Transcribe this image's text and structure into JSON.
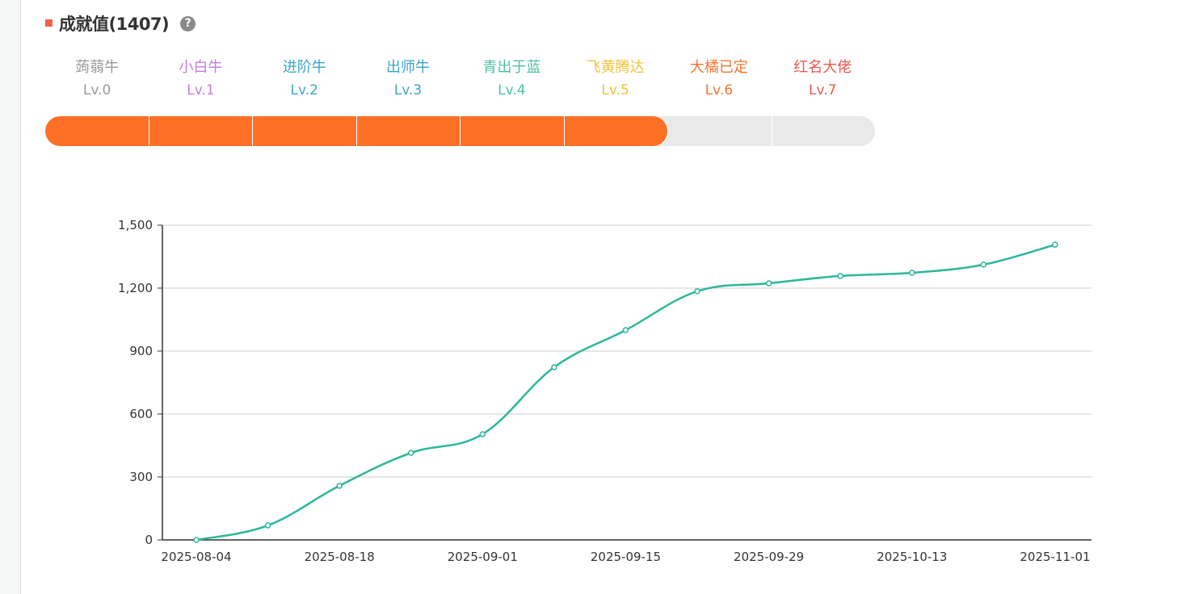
{
  "header": {
    "title": "成就值(1407)",
    "help_icon": "question-circle-icon",
    "marker_color": "#f4604a"
  },
  "levels": [
    {
      "name": "蒟蒻牛",
      "level": "Lv.0",
      "color": "#999999"
    },
    {
      "name": "小白牛",
      "level": "Lv.1",
      "color": "#c27ee0"
    },
    {
      "name": "进阶牛",
      "level": "Lv.2",
      "color": "#3ba5c9"
    },
    {
      "name": "出师牛",
      "level": "Lv.3",
      "color": "#3ba5c9"
    },
    {
      "name": "青出于蓝",
      "level": "Lv.4",
      "color": "#4cc1a8"
    },
    {
      "name": "飞黄腾达",
      "level": "Lv.5",
      "color": "#ecc43a"
    },
    {
      "name": "大橘已定",
      "level": "Lv.6",
      "color": "#f5742f"
    },
    {
      "name": "红名大佬",
      "level": "Lv.7",
      "color": "#ed5750"
    }
  ],
  "progress": {
    "segments_total": 8,
    "segments_filled": 6,
    "fill_color": "#fe7026",
    "empty_color": "#e9e9e9"
  },
  "chart_data": {
    "type": "line",
    "title": "",
    "xlabel": "",
    "ylabel": "",
    "x": [
      "2025-08-04",
      "2025-08-11",
      "2025-08-18",
      "2025-08-25",
      "2025-09-01",
      "2025-09-08",
      "2025-09-15",
      "2025-09-22",
      "2025-09-29",
      "2025-10-06",
      "2025-10-13",
      "2025-10-20",
      "2025-11-01"
    ],
    "x_tick_labels": [
      "2025-08-04",
      "2025-08-18",
      "2025-09-01",
      "2025-09-15",
      "2025-09-29",
      "2025-10-13",
      "2025-11-01"
    ],
    "series": [
      {
        "name": "成就值",
        "color": "#2cb79a",
        "values": [
          0,
          69,
          258,
          415,
          504,
          823,
          1000,
          1185,
          1223,
          1258,
          1273,
          1312,
          1407
        ]
      }
    ],
    "ylim": [
      0,
      1500
    ],
    "y_ticks": [
      0,
      300,
      600,
      900,
      1200,
      1500
    ],
    "y_tick_labels": [
      "0",
      "300",
      "600",
      "900",
      "1,200",
      "1,500"
    ],
    "grid": true,
    "smooth": true,
    "legend": "none"
  }
}
